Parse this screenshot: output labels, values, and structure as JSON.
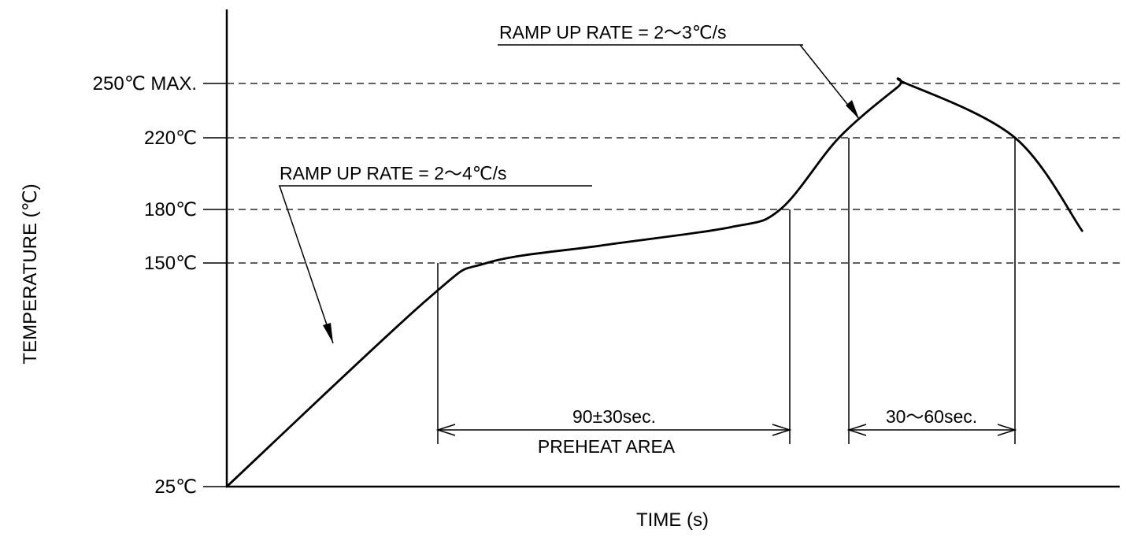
{
  "chart_data": {
    "type": "line",
    "title": "",
    "xlabel": "TIME (s)",
    "ylabel": "TEMPERATURE (℃)",
    "y_ticks": [
      {
        "value": 25,
        "label": "25℃"
      },
      {
        "value": 150,
        "label": "150℃"
      },
      {
        "value": 180,
        "label": "180℃"
      },
      {
        "value": 220,
        "label": "220℃"
      },
      {
        "value": 250,
        "label": "250℃ MAX."
      }
    ],
    "grid": "dashed horizontal lines at the labelled temperatures",
    "legend": "none",
    "annotations": {
      "ramp_up_1": "RAMP UP RATE = 2～4℃/s",
      "ramp_up_2": "RAMP UP RATE = 2～3℃/s",
      "preheat_time": "90±30sec.",
      "preheat_area": "PREHEAT AREA",
      "reflow_time": "30～60sec."
    },
    "series": [
      {
        "x": [
          0,
          120,
          155,
          225,
          300,
          330,
          365,
          400,
          405,
          470,
          510
        ],
        "y": [
          25,
          130,
          150,
          160,
          170,
          180,
          220,
          248,
          250,
          220,
          168
        ]
      }
    ]
  }
}
